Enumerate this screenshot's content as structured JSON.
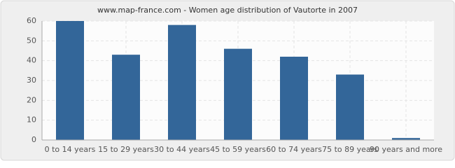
{
  "chart_data": {
    "type": "bar",
    "title": "www.map-france.com - Women age distribution of Vautorte in 2007",
    "categories": [
      "0 to 14 years",
      "15 to 29 years",
      "30 to 44 years",
      "45 to 59 years",
      "60 to 74 years",
      "75 to 89 years",
      "90 years and more"
    ],
    "values": [
      60,
      43,
      58,
      46,
      42,
      33,
      1
    ],
    "color": "#336699",
    "ylim": [
      0,
      60
    ],
    "yticks": [
      0,
      10,
      20,
      30,
      40,
      50,
      60
    ],
    "grid": true
  }
}
